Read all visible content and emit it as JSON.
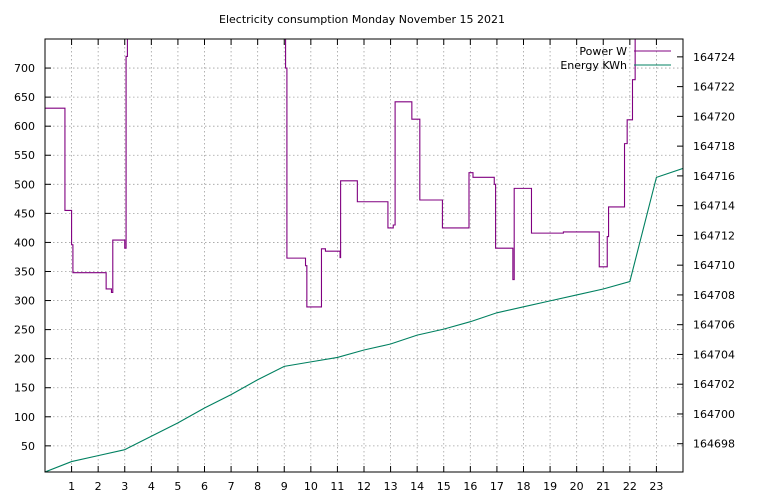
{
  "chart_data": {
    "type": "line",
    "title": "Electricity consumption Monday November 15 2021",
    "grid": true,
    "legend_position": "top-right",
    "x_axis": {
      "range": [
        0,
        24
      ],
      "ticks": [
        1,
        2,
        3,
        4,
        5,
        6,
        7,
        8,
        9,
        10,
        11,
        12,
        13,
        14,
        15,
        16,
        17,
        18,
        19,
        20,
        21,
        22,
        23
      ]
    },
    "y_axis_left": {
      "range": [
        5,
        750
      ],
      "ticks": [
        50,
        100,
        150,
        200,
        250,
        300,
        350,
        400,
        450,
        500,
        550,
        600,
        650,
        700
      ]
    },
    "y_axis_right": {
      "range": [
        164696.1,
        164725.2
      ],
      "ticks": [
        164698,
        164700,
        164702,
        164704,
        164706,
        164708,
        164710,
        164712,
        164714,
        164716,
        164718,
        164720,
        164722,
        164724
      ]
    },
    "series": [
      {
        "name": "Power W",
        "axis": "left",
        "color": "#800080",
        "step": true,
        "points": [
          [
            0,
            631
          ],
          [
            0.75,
            631
          ],
          [
            0.75,
            455
          ],
          [
            1.0,
            455
          ],
          [
            1.0,
            396
          ],
          [
            1.05,
            396
          ],
          [
            1.05,
            348
          ],
          [
            2.3,
            348
          ],
          [
            2.3,
            320
          ],
          [
            2.5,
            320
          ],
          [
            2.5,
            314
          ],
          [
            2.55,
            314
          ],
          [
            2.55,
            404
          ],
          [
            3.0,
            404
          ],
          [
            3.0,
            390
          ],
          [
            3.05,
            390
          ],
          [
            3.05,
            720
          ],
          [
            3.1,
            720
          ],
          [
            3.1,
            750
          ],
          [
            9.05,
            750
          ],
          [
            9.05,
            700
          ],
          [
            9.1,
            700
          ],
          [
            9.1,
            373
          ],
          [
            9.8,
            373
          ],
          [
            9.8,
            360
          ],
          [
            9.85,
            360
          ],
          [
            9.85,
            289
          ],
          [
            10.4,
            289
          ],
          [
            10.4,
            389
          ],
          [
            10.55,
            389
          ],
          [
            10.55,
            385
          ],
          [
            11.1,
            385
          ],
          [
            11.1,
            374
          ],
          [
            11.12,
            374
          ],
          [
            11.12,
            506
          ],
          [
            11.75,
            506
          ],
          [
            11.75,
            470
          ],
          [
            12.9,
            470
          ],
          [
            12.9,
            425
          ],
          [
            13.1,
            425
          ],
          [
            13.1,
            430
          ],
          [
            13.17,
            430
          ],
          [
            13.17,
            642
          ],
          [
            13.8,
            642
          ],
          [
            13.8,
            612
          ],
          [
            14.1,
            612
          ],
          [
            14.1,
            473
          ],
          [
            14.95,
            473
          ],
          [
            14.95,
            425
          ],
          [
            15.95,
            425
          ],
          [
            15.95,
            520
          ],
          [
            16.1,
            520
          ],
          [
            16.1,
            512
          ],
          [
            16.9,
            512
          ],
          [
            16.9,
            500
          ],
          [
            16.95,
            500
          ],
          [
            16.95,
            390
          ],
          [
            17.6,
            390
          ],
          [
            17.6,
            336
          ],
          [
            17.65,
            336
          ],
          [
            17.65,
            493
          ],
          [
            18.3,
            493
          ],
          [
            18.3,
            416
          ],
          [
            19.5,
            416
          ],
          [
            19.5,
            418
          ],
          [
            20.85,
            418
          ],
          [
            20.85,
            358
          ],
          [
            21.15,
            358
          ],
          [
            21.15,
            410
          ],
          [
            21.2,
            410
          ],
          [
            21.2,
            461
          ],
          [
            21.8,
            461
          ],
          [
            21.8,
            570
          ],
          [
            21.9,
            570
          ],
          [
            21.9,
            611
          ],
          [
            22.1,
            611
          ],
          [
            22.1,
            680
          ],
          [
            22.2,
            680
          ],
          [
            22.2,
            750
          ]
        ]
      },
      {
        "name": "Energy KWh",
        "axis": "right",
        "color": "#008060",
        "step": false,
        "points": [
          [
            0,
            164696.1
          ],
          [
            1,
            164696.8
          ],
          [
            2,
            164697.2
          ],
          [
            3,
            164697.6
          ],
          [
            4,
            164698.5
          ],
          [
            5,
            164699.4
          ],
          [
            6,
            164700.4
          ],
          [
            7,
            164701.3
          ],
          [
            8,
            164702.3
          ],
          [
            9,
            164703.2
          ],
          [
            10,
            164703.5
          ],
          [
            11,
            164703.8
          ],
          [
            12,
            164704.3
          ],
          [
            13,
            164704.7
          ],
          [
            14,
            164705.3
          ],
          [
            15,
            164705.7
          ],
          [
            16,
            164706.2
          ],
          [
            17,
            164706.8
          ],
          [
            18,
            164707.2
          ],
          [
            19,
            164707.6
          ],
          [
            20,
            164708.0
          ],
          [
            21,
            164708.4
          ],
          [
            22,
            164708.9
          ],
          [
            23,
            164715.9
          ],
          [
            24,
            164716.5
          ]
        ]
      }
    ]
  }
}
